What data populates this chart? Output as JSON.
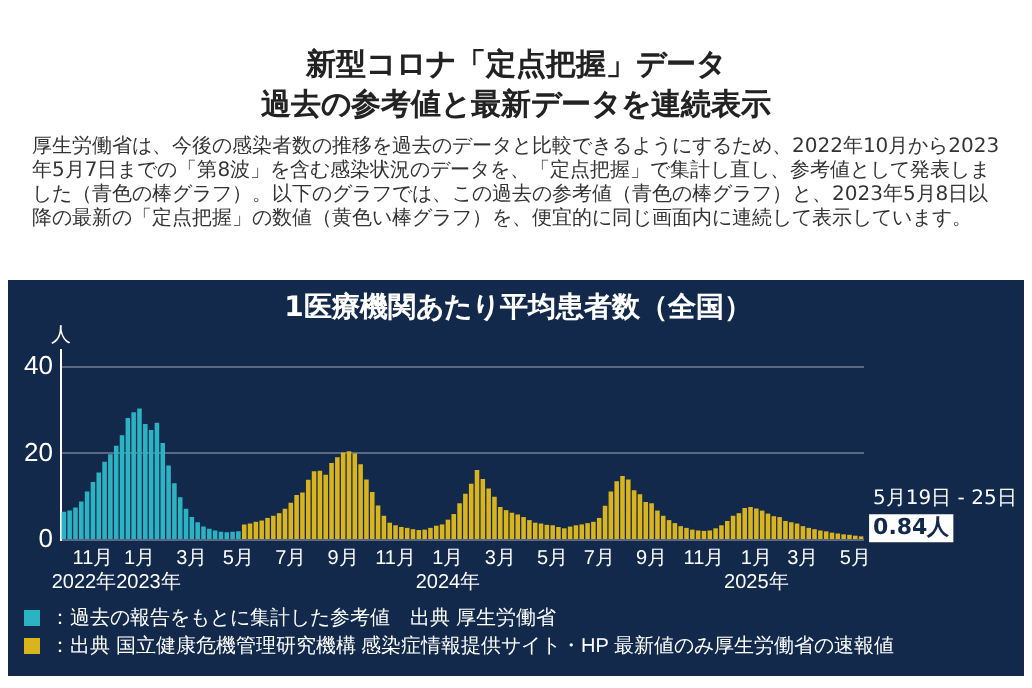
{
  "chart_data": {
    "type": "bar",
    "title": "新型コロナ「定点把握」データ",
    "subtitle": "過去の参考値と最新データを連続表示",
    "annotations": [
      "厚生労働省は、今後の感染者数の推移を過去のデータと比較できるようにするため、2022年10月から2023年5月7日までの「第8波」を含む感染状況のデータを、「定点把握」で集計し直し、参考値として発表しました（青色の棒グラフ）。以下のグラフでは、この過去の参考値（青色の棒グラフ）と、2023年5月8日以降の最新の「定点把握」の数値（黄色い棒グラフ）を、便宜的に同じ画面内に連続して表示しています。",
      "1医療機関あたり平均患者数（全国）",
      "5月19日 - 25日",
      "0.84人"
    ],
    "ylabel": "人",
    "categories": [
      null,
      null,
      null,
      null,
      null,
      "11月",
      null,
      null,
      null,
      "\n2022年2023年",
      null,
      null,
      null,
      "1月",
      null,
      null,
      null,
      null,
      null,
      null,
      null,
      null,
      "3月",
      null,
      null,
      null,
      null,
      null,
      null,
      null,
      "5月",
      null,
      null,
      null,
      null,
      null,
      null,
      null,
      null,
      "7月",
      null,
      null,
      null,
      null,
      null,
      null,
      null,
      null,
      "9月",
      null,
      null,
      null,
      null,
      null,
      null,
      null,
      null,
      "11月",
      null,
      null,
      null,
      null,
      null,
      null,
      null,
      null,
      "1月\n2024年",
      null,
      null,
      null,
      null,
      null,
      null,
      null,
      null,
      "3月",
      null,
      null,
      null,
      null,
      null,
      null,
      null,
      null,
      "5月",
      null,
      null,
      null,
      null,
      null,
      null,
      null,
      "7月",
      null,
      null,
      null,
      null,
      null,
      null,
      null,
      null,
      "9月",
      null,
      null,
      null,
      null,
      null,
      null,
      null,
      null,
      "11月",
      null,
      null,
      null,
      null,
      null,
      null,
      null,
      null,
      "1月\n2025年",
      null,
      null,
      null,
      null,
      null,
      null,
      null,
      "3月",
      null,
      null,
      null,
      null,
      null,
      null,
      null,
      null,
      "5月",
      null
    ],
    "series": [
      {
        "name": "：過去の報告をもとに集計した参考値　出典 厚生労働省",
        "color": "#2bb3c4",
        "values": [
          6.5,
          6.8,
          7.5,
          8.9,
          11.2,
          13.4,
          15.6,
          18.1,
          19.8,
          21.8,
          24.2,
          28.2,
          29.5,
          30.4,
          26.8,
          25.4,
          27.1,
          22.4,
          17.2,
          13.1,
          9.9,
          7.2,
          5.3,
          4.1,
          3.1,
          2.6,
          2.2,
          1.9,
          1.8,
          1.9,
          2.0,
          null,
          null,
          null,
          null,
          null,
          null,
          null,
          null,
          null,
          null,
          null,
          null,
          null,
          null,
          null,
          null,
          null,
          null,
          null,
          null,
          null,
          null,
          null,
          null,
          null,
          null,
          null,
          null,
          null,
          null,
          null,
          null,
          null,
          null,
          null,
          null,
          null,
          null,
          null,
          null,
          null,
          null,
          null,
          null,
          null,
          null,
          null,
          null,
          null,
          null,
          null,
          null,
          null,
          null,
          null,
          null,
          null,
          null,
          null,
          null,
          null,
          null,
          null,
          null,
          null,
          null,
          null,
          null,
          null,
          null,
          null,
          null,
          null,
          null,
          null,
          null,
          null,
          null,
          null,
          null,
          null,
          null,
          null,
          null,
          null,
          null,
          null,
          null,
          null,
          null,
          null,
          null,
          null,
          null,
          null,
          null,
          null,
          null,
          null,
          null,
          null,
          null,
          null,
          null,
          null,
          null,
          null
        ]
      },
      {
        "name": "：出典 国立健康危機管理研究機構 感染症情報提供サイト・HP 最新値のみ厚生労働省の速報値",
        "color": "#d9b41c",
        "values": [
          null,
          null,
          null,
          null,
          null,
          null,
          null,
          null,
          null,
          null,
          null,
          null,
          null,
          null,
          null,
          null,
          null,
          null,
          null,
          null,
          null,
          null,
          null,
          null,
          null,
          null,
          null,
          null,
          null,
          null,
          null,
          3.6,
          3.8,
          4.2,
          4.5,
          5.1,
          5.6,
          6.2,
          7.2,
          8.6,
          10.4,
          11.0,
          13.9,
          15.9,
          16.0,
          15.1,
          17.8,
          19.1,
          20.2,
          20.5,
          20.0,
          17.5,
          14.0,
          11.1,
          8.0,
          5.6,
          4.0,
          3.4,
          3.0,
          2.8,
          2.5,
          2.3,
          2.4,
          2.8,
          3.3,
          3.6,
          4.7,
          6.0,
          8.5,
          10.7,
          13.0,
          16.2,
          14.1,
          11.9,
          10.0,
          7.6,
          6.9,
          6.3,
          5.9,
          5.3,
          4.6,
          4.0,
          3.8,
          3.5,
          3.4,
          3.0,
          2.7,
          3.1,
          3.4,
          3.6,
          3.9,
          4.2,
          5.1,
          7.9,
          11.2,
          13.6,
          14.8,
          14.0,
          11.5,
          10.6,
          8.8,
          8.5,
          6.8,
          5.6,
          4.6,
          3.9,
          3.2,
          2.8,
          2.4,
          2.2,
          2.1,
          2.2,
          2.7,
          3.4,
          4.4,
          5.6,
          6.2,
          7.4,
          7.6,
          7.3,
          6.8,
          6.1,
          5.5,
          5.3,
          4.4,
          4.1,
          3.8,
          3.2,
          2.8,
          2.5,
          2.2,
          2.0,
          1.7,
          1.5,
          1.3,
          1.2,
          1.0,
          0.84
        ]
      }
    ],
    "ylim": [
      0,
      44
    ],
    "yticks": [
      0,
      20,
      40
    ],
    "grid": "y",
    "legend": "bottom"
  }
}
